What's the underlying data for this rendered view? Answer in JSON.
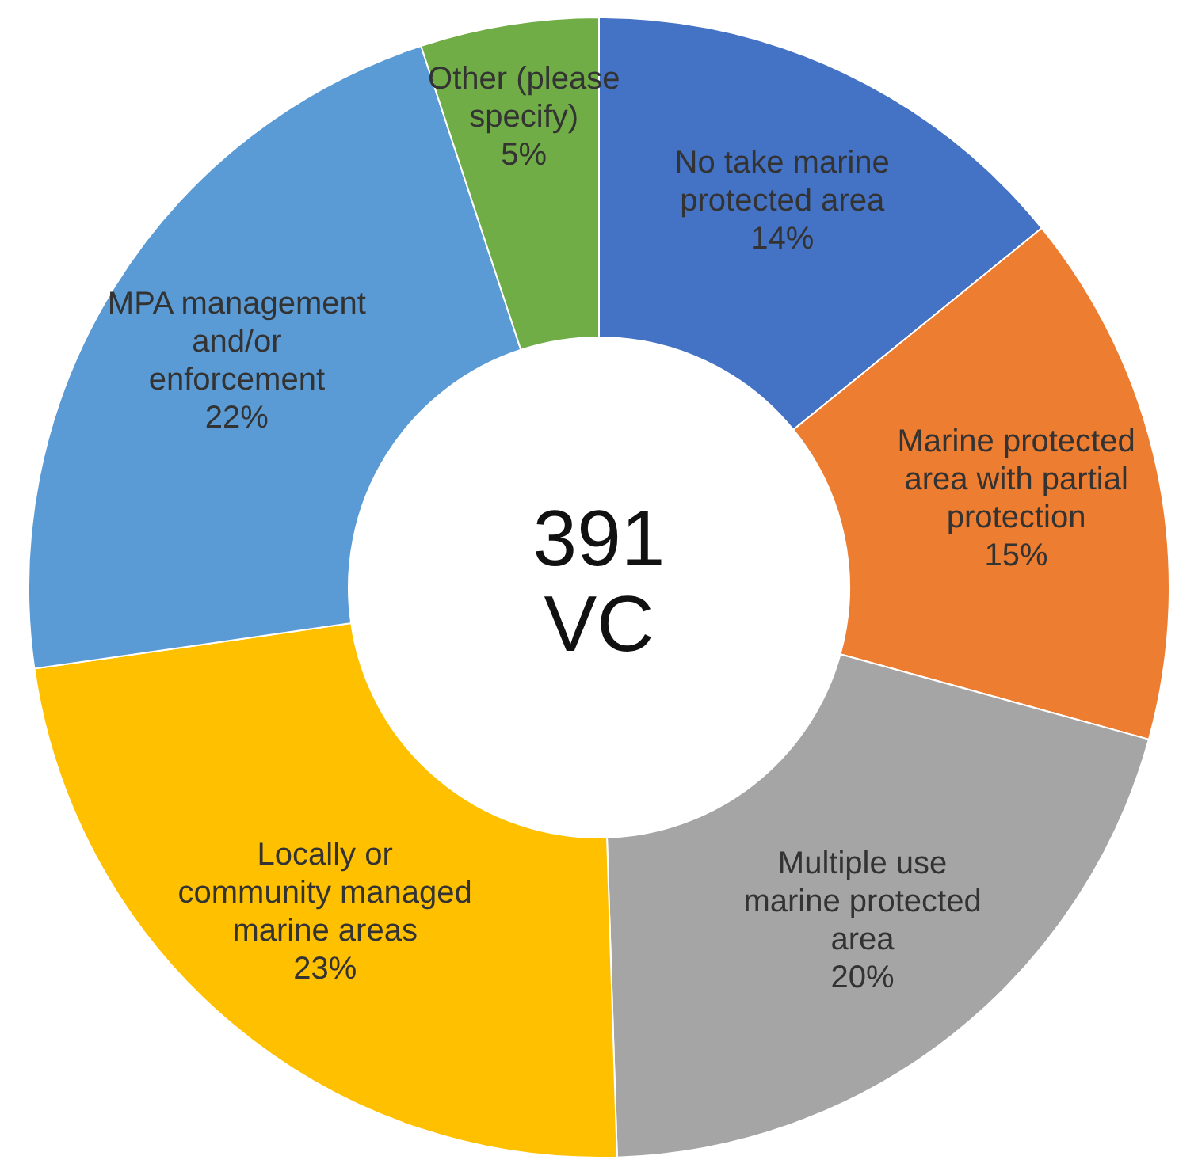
{
  "chart_data": {
    "type": "donut",
    "categories": [
      "No take marine protected area",
      "Marine protected area with partial protection",
      "Multiple use marine protected area",
      "Locally or community managed marine areas",
      "MPA management and/or enforcement",
      "Other (please specify)"
    ],
    "values": [
      14,
      15,
      20,
      23,
      22,
      5
    ],
    "value_labels": [
      "14%",
      "15%",
      "20%",
      "23%",
      "22%",
      "5%"
    ],
    "colors": [
      "#4472c4",
      "#ed7d31",
      "#a5a5a5",
      "#ffc000",
      "#5b9bd5",
      "#70ad47"
    ],
    "annotations": [
      "391 VC"
    ]
  }
}
